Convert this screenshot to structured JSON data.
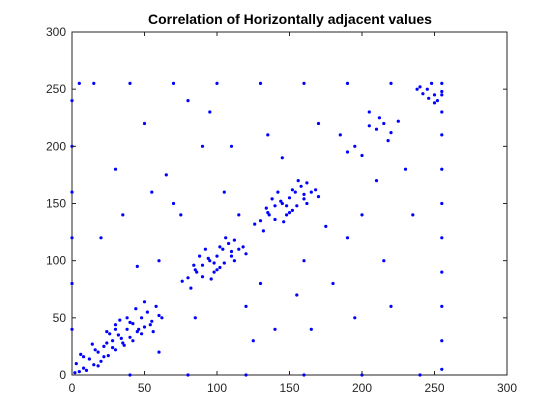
{
  "chart_data": {
    "type": "scatter",
    "title": "Correlation of Horizontally adjacent values",
    "xlabel": "",
    "ylabel": "",
    "xlim": [
      0,
      300
    ],
    "ylim": [
      0,
      300
    ],
    "xticks": [
      0,
      50,
      100,
      150,
      200,
      250,
      300
    ],
    "yticks": [
      0,
      50,
      100,
      150,
      200,
      250,
      300
    ],
    "xtick_labels": [
      "0",
      "50",
      "100",
      "150",
      "200",
      "250",
      "300"
    ],
    "ytick_labels": [
      "0",
      "50",
      "100",
      "150",
      "200",
      "250",
      "300"
    ],
    "grid": false,
    "marker_color": "#0000ff",
    "series": [
      {
        "points": [
          [
            2,
            2
          ],
          [
            5,
            3
          ],
          [
            8,
            6
          ],
          [
            3,
            10
          ],
          [
            10,
            4
          ],
          [
            12,
            14
          ],
          [
            15,
            9
          ],
          [
            18,
            20
          ],
          [
            6,
            18
          ],
          [
            20,
            12
          ],
          [
            22,
            25
          ],
          [
            25,
            17
          ],
          [
            28,
            30
          ],
          [
            14,
            27
          ],
          [
            30,
            22
          ],
          [
            32,
            35
          ],
          [
            35,
            28
          ],
          [
            38,
            40
          ],
          [
            24,
            38
          ],
          [
            40,
            33
          ],
          [
            42,
            45
          ],
          [
            45,
            38
          ],
          [
            48,
            50
          ],
          [
            33,
            48
          ],
          [
            50,
            42
          ],
          [
            52,
            55
          ],
          [
            55,
            47
          ],
          [
            58,
            60
          ],
          [
            44,
            58
          ],
          [
            60,
            52
          ],
          [
            36,
            26
          ],
          [
            26,
            36
          ],
          [
            46,
            40
          ],
          [
            40,
            46
          ],
          [
            34,
            32
          ],
          [
            30,
            40
          ],
          [
            48,
            36
          ],
          [
            38,
            50
          ],
          [
            54,
            44
          ],
          [
            22,
            16
          ],
          [
            16,
            22
          ],
          [
            28,
            24
          ],
          [
            24,
            28
          ],
          [
            42,
            30
          ],
          [
            30,
            44
          ],
          [
            18,
            8
          ],
          [
            8,
            16
          ],
          [
            62,
            50
          ],
          [
            50,
            64
          ],
          [
            56,
            38
          ],
          [
            80,
            85
          ],
          [
            85,
            92
          ],
          [
            90,
            96
          ],
          [
            95,
            100
          ],
          [
            100,
            104
          ],
          [
            105,
            98
          ],
          [
            110,
            108
          ],
          [
            88,
            104
          ],
          [
            98,
            90
          ],
          [
            92,
            110
          ],
          [
            102,
            94
          ],
          [
            108,
            115
          ],
          [
            115,
            110
          ],
          [
            84,
            96
          ],
          [
            96,
            84
          ],
          [
            106,
            120
          ],
          [
            120,
            106
          ],
          [
            94,
            102
          ],
          [
            100,
            92
          ],
          [
            112,
            100
          ],
          [
            86,
            90
          ],
          [
            90,
            86
          ],
          [
            104,
            110
          ],
          [
            110,
            104
          ],
          [
            98,
            98
          ],
          [
            118,
            112
          ],
          [
            112,
            118
          ],
          [
            76,
            82
          ],
          [
            82,
            76
          ],
          [
            102,
            112
          ],
          [
            130,
            135
          ],
          [
            135,
            142
          ],
          [
            140,
            148
          ],
          [
            145,
            150
          ],
          [
            150,
            155
          ],
          [
            155,
            148
          ],
          [
            160,
            158
          ],
          [
            138,
            154
          ],
          [
            148,
            140
          ],
          [
            142,
            160
          ],
          [
            152,
            144
          ],
          [
            158,
            165
          ],
          [
            165,
            160
          ],
          [
            134,
            146
          ],
          [
            146,
            134
          ],
          [
            156,
            170
          ],
          [
            170,
            156
          ],
          [
            144,
            152
          ],
          [
            150,
            142
          ],
          [
            162,
            150
          ],
          [
            136,
            140
          ],
          [
            140,
            136
          ],
          [
            154,
            160
          ],
          [
            160,
            154
          ],
          [
            148,
            148
          ],
          [
            168,
            162
          ],
          [
            162,
            168
          ],
          [
            126,
            132
          ],
          [
            132,
            126
          ],
          [
            152,
            162
          ],
          [
            190,
            195
          ],
          [
            195,
            200
          ],
          [
            200,
            192
          ],
          [
            210,
            215
          ],
          [
            215,
            220
          ],
          [
            220,
            212
          ],
          [
            218,
            205
          ],
          [
            205,
            218
          ],
          [
            225,
            222
          ],
          [
            212,
            225
          ],
          [
            245,
            250
          ],
          [
            250,
            245
          ],
          [
            248,
            255
          ],
          [
            255,
            248
          ],
          [
            240,
            252
          ],
          [
            252,
            240
          ],
          [
            246,
            242
          ],
          [
            242,
            246
          ],
          [
            238,
            250
          ],
          [
            250,
            238
          ],
          [
            5,
            255
          ],
          [
            15,
            255
          ],
          [
            40,
            255
          ],
          [
            70,
            255
          ],
          [
            100,
            255
          ],
          [
            130,
            255
          ],
          [
            160,
            255
          ],
          [
            190,
            255
          ],
          [
            220,
            255
          ],
          [
            255,
            255
          ],
          [
            255,
            5
          ],
          [
            255,
            30
          ],
          [
            255,
            60
          ],
          [
            255,
            90
          ],
          [
            255,
            120
          ],
          [
            255,
            150
          ],
          [
            255,
            180
          ],
          [
            255,
            210
          ],
          [
            255,
            230
          ],
          [
            255,
            245
          ],
          [
            0,
            40
          ],
          [
            0,
            80
          ],
          [
            0,
            120
          ],
          [
            0,
            160
          ],
          [
            0,
            200
          ],
          [
            0,
            240
          ],
          [
            40,
            0
          ],
          [
            80,
            0
          ],
          [
            120,
            0
          ],
          [
            160,
            0
          ],
          [
            200,
            0
          ],
          [
            240,
            0
          ],
          [
            20,
            120
          ],
          [
            30,
            180
          ],
          [
            50,
            220
          ],
          [
            60,
            100
          ],
          [
            70,
            150
          ],
          [
            90,
            200
          ],
          [
            120,
            60
          ],
          [
            140,
            40
          ],
          [
            160,
            100
          ],
          [
            180,
            80
          ],
          [
            200,
            140
          ],
          [
            220,
            60
          ],
          [
            230,
            180
          ],
          [
            110,
            200
          ],
          [
            80,
            240
          ],
          [
            60,
            20
          ],
          [
            130,
            80
          ],
          [
            170,
            220
          ],
          [
            190,
            120
          ],
          [
            210,
            170
          ],
          [
            45,
            95
          ],
          [
            75,
            140
          ],
          [
            105,
            160
          ],
          [
            125,
            30
          ],
          [
            145,
            190
          ],
          [
            175,
            130
          ],
          [
            195,
            50
          ],
          [
            215,
            100
          ],
          [
            235,
            140
          ],
          [
            65,
            175
          ],
          [
            95,
            230
          ],
          [
            155,
            70
          ],
          [
            185,
            210
          ],
          [
            35,
            140
          ],
          [
            55,
            160
          ],
          [
            85,
            50
          ],
          [
            115,
            140
          ],
          [
            135,
            210
          ],
          [
            165,
            40
          ],
          [
            205,
            230
          ]
        ]
      }
    ]
  }
}
